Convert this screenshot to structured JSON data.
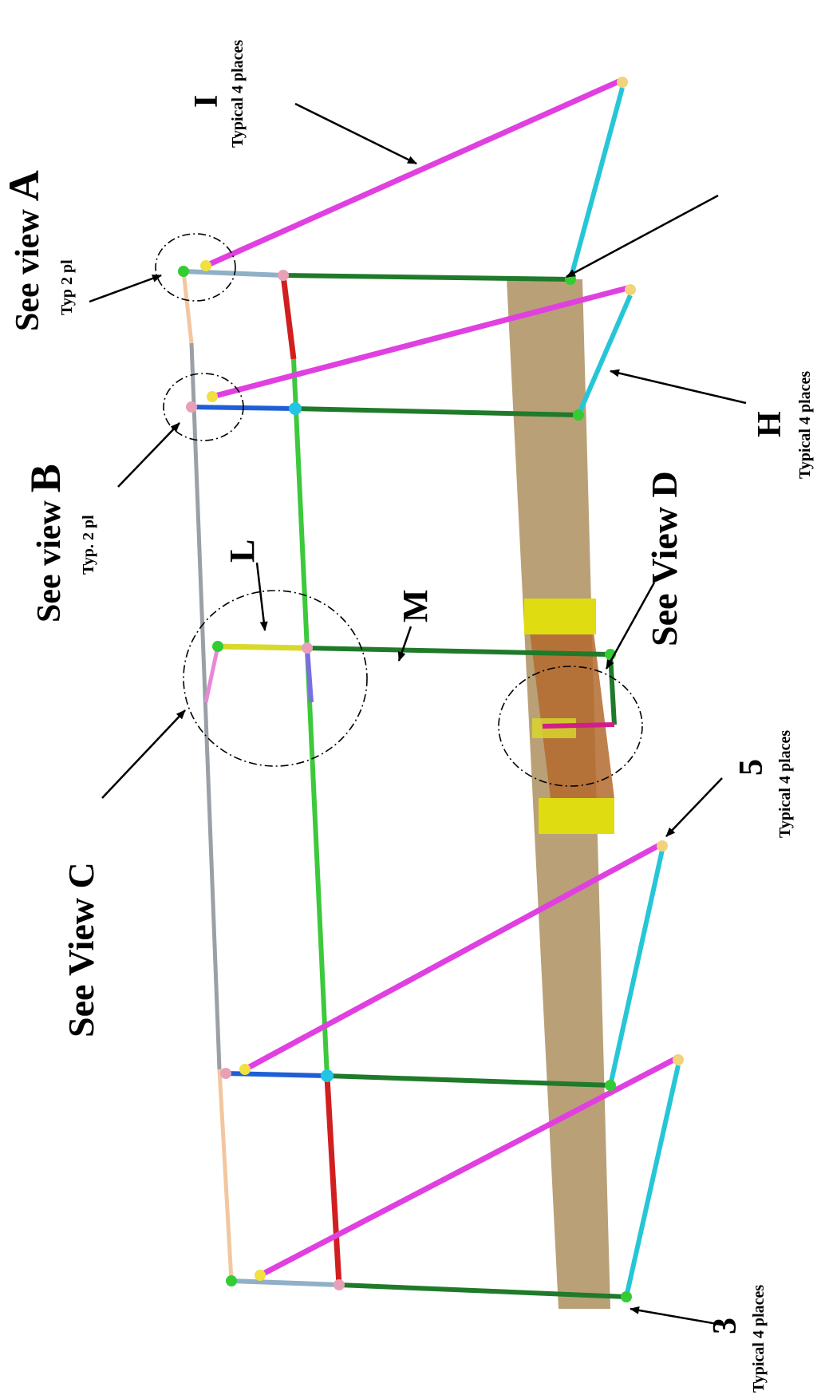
{
  "labels": {
    "view_a_title": "See view",
    "view_a_letter": "A",
    "view_a_typ": "Typ 2 pl",
    "view_b_title": "See view",
    "view_b_letter": "B",
    "view_b_typ": "Typ. 2 pl",
    "view_c": "See View C",
    "view_d": "See View D",
    "label_i": "I",
    "label_i_typ": "Typical 4 places",
    "label_h": "H",
    "label_h_typ": "Typical 4 places",
    "label_l": "L",
    "label_m": "M",
    "label_5": "5",
    "label_5_typ": "Typical 4 places",
    "label_3": "3",
    "label_3_typ": "Typical 4 places"
  },
  "colors": {
    "vertical_post": "#1f7a2a",
    "diagonal_brace": "#e040e0",
    "lower_strut": "#26c6d6",
    "top_rail_gray": "#9aa0a6",
    "top_rail_peach": "#f2c7a0",
    "rail_red": "#d11f1f",
    "rail_lime": "#3cc93c",
    "rail_blue": "#1f5fd6",
    "rail_steel": "#8fb0c7",
    "rail_yellow": "#d9d92a",
    "base_sand": "#b9a077",
    "base_brown": "#b36a2e",
    "pad_yellow": "#e0dc12",
    "joint_pink": "#e8a0b8",
    "joint_green": "#33cc33",
    "joint_cyan": "#22c6e0"
  }
}
